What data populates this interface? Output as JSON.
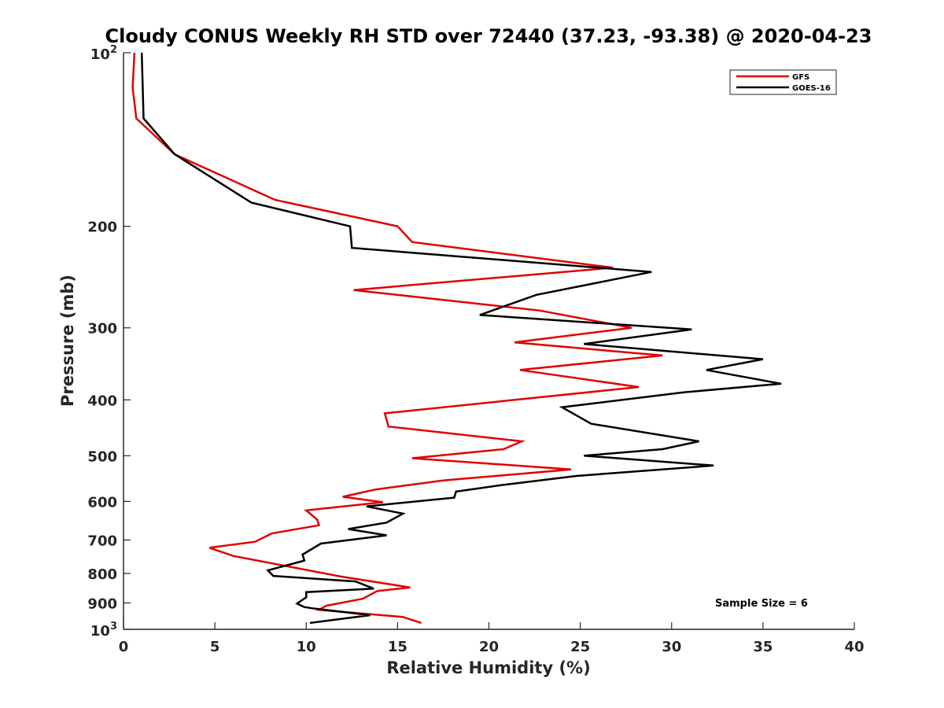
{
  "chart_data": {
    "type": "line",
    "title": "Cloudy CONUS Weekly RH STD over 72440 (37.23, -93.38) @ 2020-04-23",
    "xlabel": "Relative Humidity (%)",
    "ylabel": "Pressure (mb)",
    "xlim": [
      0,
      40
    ],
    "ylim": [
      100,
      1000
    ],
    "yscale": "log",
    "yreversed": true,
    "grid": false,
    "legend_position": "top-right",
    "annotation": "Sample Size = 6",
    "x_ticks": [
      {
        "value": 0,
        "label": "0"
      },
      {
        "value": 5,
        "label": "5"
      },
      {
        "value": 10,
        "label": "10"
      },
      {
        "value": 15,
        "label": "15"
      },
      {
        "value": 20,
        "label": "20"
      },
      {
        "value": 25,
        "label": "25"
      },
      {
        "value": 30,
        "label": "30"
      },
      {
        "value": 35,
        "label": "35"
      },
      {
        "value": 40,
        "label": "40"
      }
    ],
    "y_ticks": [
      {
        "value": 100,
        "base": "10",
        "exp": "2"
      },
      {
        "value": 200,
        "label": "200"
      },
      {
        "value": 300,
        "label": "300"
      },
      {
        "value": 400,
        "label": "400"
      },
      {
        "value": 500,
        "label": "500"
      },
      {
        "value": 600,
        "label": "600"
      },
      {
        "value": 700,
        "label": "700"
      },
      {
        "value": 800,
        "label": "800"
      },
      {
        "value": 900,
        "label": "900"
      },
      {
        "value": 1000,
        "base": "10",
        "exp": "3"
      }
    ],
    "series": [
      {
        "name": "GFS",
        "color": "#e00000",
        "points": [
          [
            0.6,
            100
          ],
          [
            0.5,
            115
          ],
          [
            0.7,
            130
          ],
          [
            2.8,
            150
          ],
          [
            8.3,
            180
          ],
          [
            15.0,
            200
          ],
          [
            15.8,
            213
          ],
          [
            26.8,
            236
          ],
          [
            12.6,
            258
          ],
          [
            22.8,
            280
          ],
          [
            27.8,
            300
          ],
          [
            21.4,
            318
          ],
          [
            29.5,
            335
          ],
          [
            21.7,
            355
          ],
          [
            28.2,
            380
          ],
          [
            14.3,
            422
          ],
          [
            14.5,
            445
          ],
          [
            21.8,
            472
          ],
          [
            20.8,
            487
          ],
          [
            15.8,
            505
          ],
          [
            24.5,
            528
          ],
          [
            17.5,
            552
          ],
          [
            13.8,
            572
          ],
          [
            12.0,
            589
          ],
          [
            14.2,
            602
          ],
          [
            10.0,
            622
          ],
          [
            10.6,
            645
          ],
          [
            10.7,
            660
          ],
          [
            8.1,
            682
          ],
          [
            7.2,
            705
          ],
          [
            4.7,
            722
          ],
          [
            6.0,
            746
          ],
          [
            11.9,
            810
          ],
          [
            15.7,
            846
          ],
          [
            13.9,
            858
          ],
          [
            13.1,
            885
          ],
          [
            11.1,
            910
          ],
          [
            10.7,
            925
          ],
          [
            15.3,
            952
          ],
          [
            16.3,
            975
          ]
        ]
      },
      {
        "name": "GOES-16",
        "color": "#000000",
        "points": [
          [
            1.0,
            100
          ],
          [
            1.1,
            130
          ],
          [
            2.8,
            150
          ],
          [
            7.0,
            182
          ],
          [
            12.4,
            200
          ],
          [
            12.5,
            218
          ],
          [
            28.9,
            240
          ],
          [
            22.6,
            263
          ],
          [
            19.5,
            285
          ],
          [
            31.1,
            302
          ],
          [
            25.2,
            320
          ],
          [
            35.0,
            340
          ],
          [
            31.9,
            355
          ],
          [
            36.0,
            375
          ],
          [
            30.7,
            388
          ],
          [
            24.0,
            412
          ],
          [
            25.6,
            440
          ],
          [
            31.5,
            472
          ],
          [
            29.5,
            487
          ],
          [
            25.2,
            500
          ],
          [
            32.3,
            520
          ],
          [
            24.8,
            542
          ],
          [
            20.7,
            562
          ],
          [
            18.2,
            577
          ],
          [
            18.1,
            591
          ],
          [
            13.3,
            612
          ],
          [
            15.3,
            630
          ],
          [
            14.4,
            653
          ],
          [
            12.3,
            670
          ],
          [
            14.4,
            687
          ],
          [
            10.8,
            710
          ],
          [
            9.8,
            742
          ],
          [
            9.9,
            760
          ],
          [
            7.9,
            790
          ],
          [
            8.2,
            808
          ],
          [
            12.7,
            826
          ],
          [
            13.7,
            850
          ],
          [
            10.0,
            862
          ],
          [
            10.0,
            880
          ],
          [
            9.5,
            902
          ],
          [
            9.9,
            915
          ],
          [
            10.5,
            921
          ],
          [
            13.5,
            945
          ],
          [
            10.2,
            975
          ]
        ]
      }
    ]
  }
}
